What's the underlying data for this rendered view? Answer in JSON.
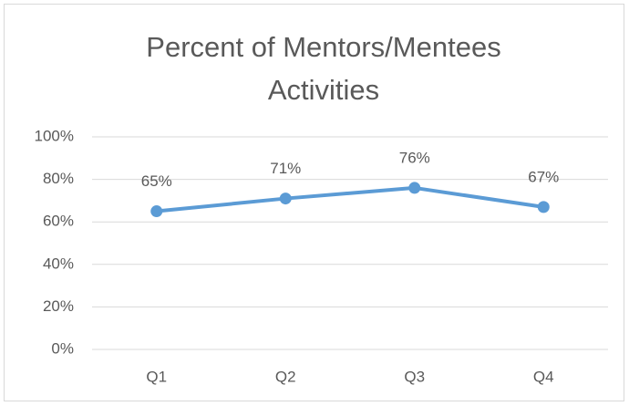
{
  "chart_data": {
    "type": "line",
    "title": "Percent of Mentors/Mentees Activities",
    "categories": [
      "Q1",
      "Q2",
      "Q3",
      "Q4"
    ],
    "values": [
      65,
      71,
      76,
      67
    ],
    "value_labels": [
      "65%",
      "71%",
      "76%",
      "67%"
    ],
    "color": "#5b9bd5",
    "ylim": [
      0,
      100
    ],
    "yticks": [
      {
        "value": 0,
        "label": "0%"
      },
      {
        "value": 20,
        "label": "20%"
      },
      {
        "value": 40,
        "label": "40%"
      },
      {
        "value": 60,
        "label": "60%"
      },
      {
        "value": 80,
        "label": "80%"
      },
      {
        "value": 100,
        "label": "100%"
      }
    ],
    "grid": true
  }
}
